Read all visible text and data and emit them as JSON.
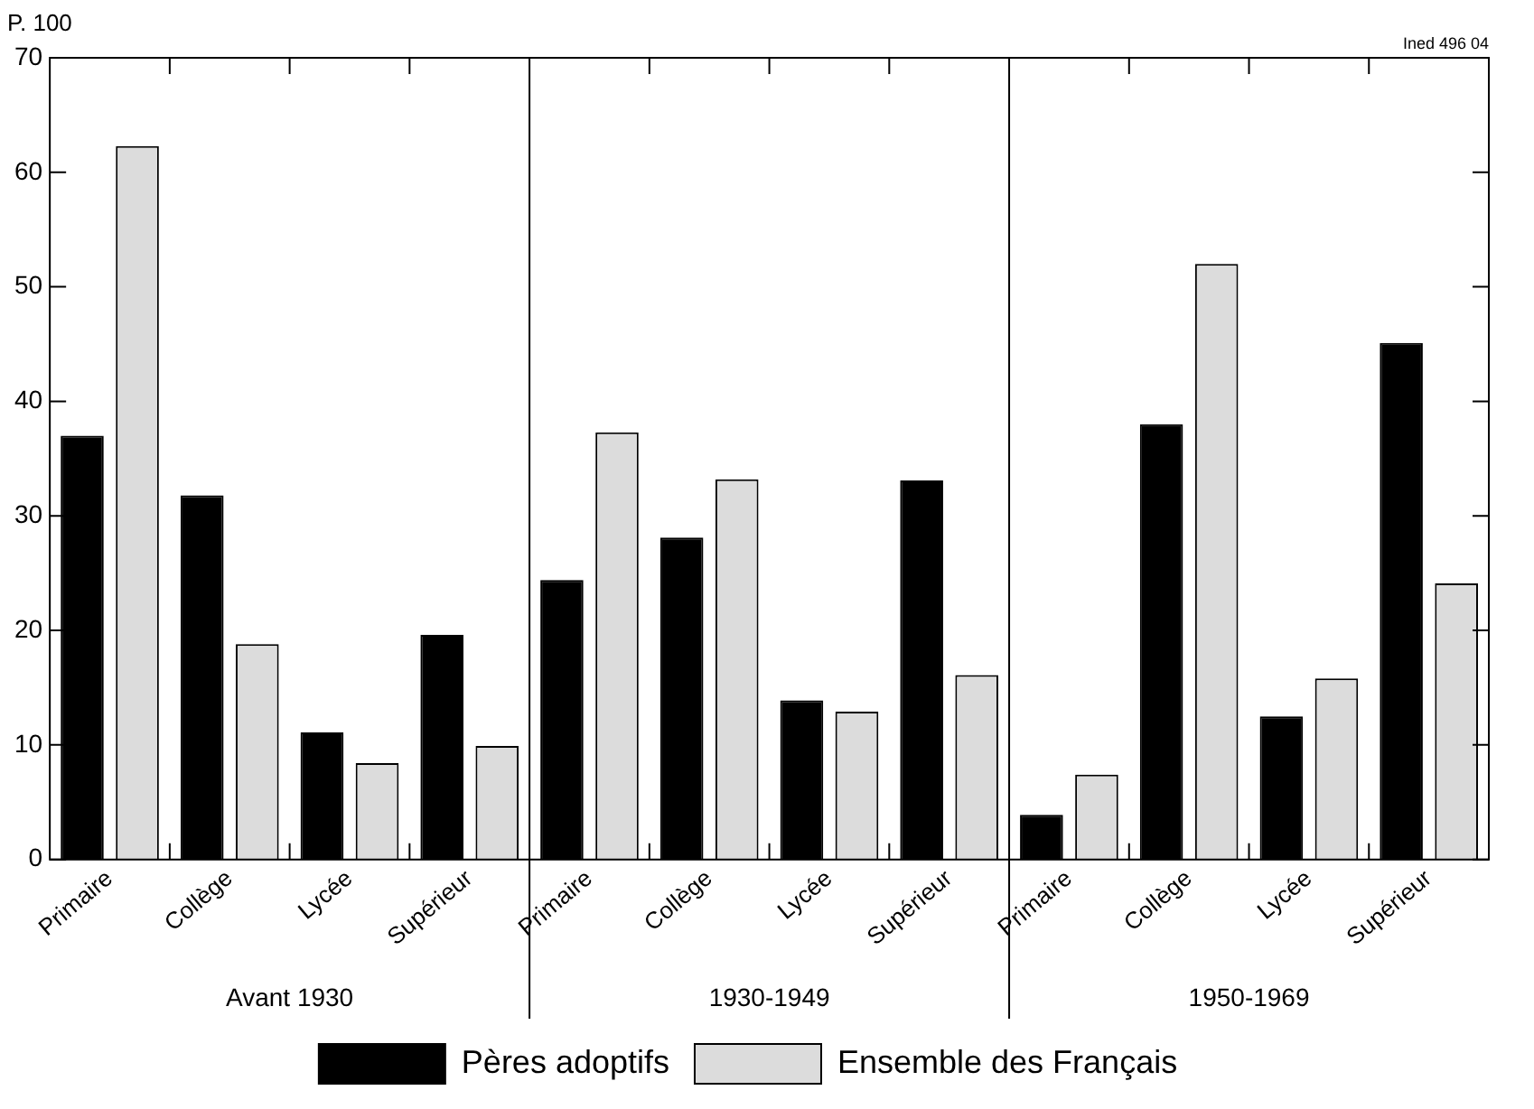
{
  "chart_data": {
    "type": "bar",
    "ylabel": "P. 100",
    "categories": [
      "Primaire",
      "Collège",
      "Lycée",
      "Supérieur",
      "Primaire",
      "Collège",
      "Lycée",
      "Supérieur",
      "Primaire",
      "Collège",
      "Lycée",
      "Supérieur"
    ],
    "series": [
      {
        "name": "Pères adoptifs",
        "color": "#000000",
        "values": [
          37.0,
          31.8,
          11.1,
          19.6,
          24.4,
          28.1,
          13.9,
          33.1,
          3.9,
          38.0,
          12.5,
          45.1
        ]
      },
      {
        "name": "Ensemble des Français",
        "color": "#dcdcdc",
        "values": [
          62.3,
          18.8,
          8.4,
          9.9,
          37.3,
          33.2,
          12.9,
          16.1,
          7.4,
          52.0,
          15.8,
          24.1
        ]
      }
    ],
    "ylim": [
      0,
      70
    ],
    "yticks": [
      0,
      10,
      20,
      30,
      40,
      50,
      60,
      70
    ],
    "grid": false,
    "legend": "bottom",
    "annotations": [
      "Avant 1930",
      "1930-1949",
      "1950-1969",
      "Ined 496 04"
    ]
  }
}
